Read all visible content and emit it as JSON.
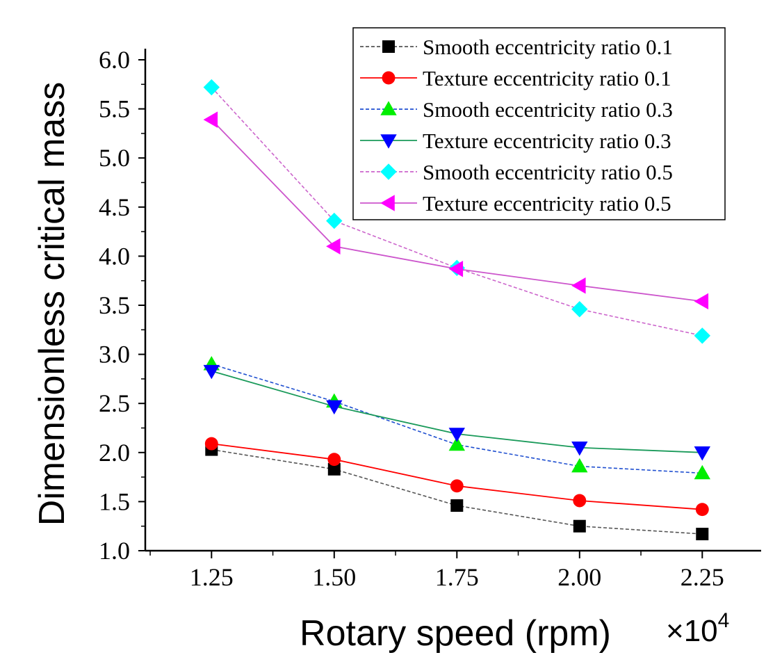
{
  "chart_data": {
    "type": "line",
    "title": "",
    "xlabel": "Rotary speed (rpm)",
    "ylabel": "Dimensionless critical mass",
    "x_multiplier": {
      "prefix": "×10",
      "exp": "4"
    },
    "x": [
      1.25,
      1.5,
      1.75,
      2.0,
      2.25
    ],
    "x_tick_labels": [
      "1.25",
      "1.50",
      "1.75",
      "2.00",
      "2.25"
    ],
    "y_ticks": [
      1.0,
      1.5,
      2.0,
      2.5,
      3.0,
      3.5,
      4.0,
      4.5,
      5.0,
      5.5,
      6.0
    ],
    "y_tick_labels": [
      "1.0",
      "1.5",
      "2.0",
      "2.5",
      "3.0",
      "3.5",
      "4.0",
      "4.5",
      "5.0",
      "5.5",
      "6.0"
    ],
    "xlim": [
      1.115,
      2.37
    ],
    "ylim": [
      1.0,
      6.0
    ],
    "legend_position": "top-right",
    "series": [
      {
        "name": "Smooth eccentricity ratio 0.1",
        "marker": "square",
        "color": "#000000",
        "line_color": "#555555",
        "dashed": true,
        "values": [
          2.03,
          1.83,
          1.46,
          1.25,
          1.17
        ]
      },
      {
        "name": "Texture eccentricity ratio 0.1",
        "marker": "circle",
        "color": "#ff0000",
        "line_color": "#ff0000",
        "dashed": false,
        "values": [
          2.09,
          1.93,
          1.66,
          1.51,
          1.42
        ]
      },
      {
        "name": "Smooth eccentricity ratio 0.3",
        "marker": "triangle-up",
        "color": "#00ee00",
        "line_color": "#1f4fd0",
        "dashed": true,
        "values": [
          2.9,
          2.52,
          2.08,
          1.86,
          1.79
        ]
      },
      {
        "name": "Texture eccentricity ratio 0.3",
        "marker": "triangle-down",
        "color": "#0000ff",
        "line_color": "#1a9a5a",
        "dashed": false,
        "values": [
          2.83,
          2.47,
          2.19,
          2.05,
          2.0
        ]
      },
      {
        "name": "Smooth eccentricity ratio 0.5",
        "marker": "diamond",
        "color": "#00ffff",
        "line_color": "#cc66cc",
        "dashed": true,
        "values": [
          5.72,
          4.36,
          3.88,
          3.46,
          3.19
        ]
      },
      {
        "name": "Texture eccentricity ratio 0.5",
        "marker": "triangle-left",
        "color": "#ff00ff",
        "line_color": "#cc55cc",
        "dashed": false,
        "values": [
          5.39,
          4.1,
          3.87,
          3.7,
          3.54
        ]
      }
    ]
  }
}
